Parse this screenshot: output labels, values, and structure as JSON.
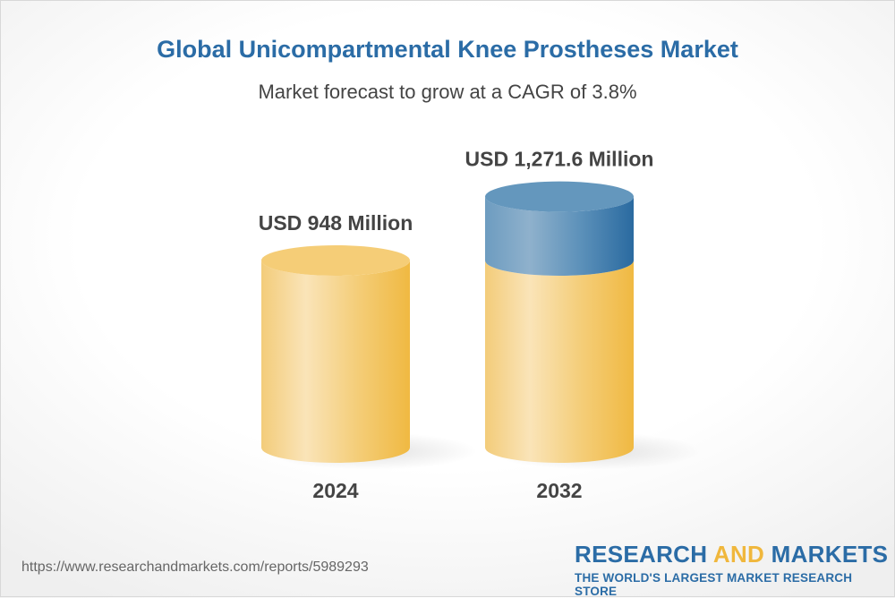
{
  "chart_data": {
    "type": "bar",
    "style": "3d-cylinder",
    "title": "Global Unicompartmental Knee Prostheses Market",
    "subtitle": "Market forecast to grow at a CAGR of 3.8%",
    "categories": [
      "2024",
      "2032"
    ],
    "values": [
      948,
      1271.6
    ],
    "data_labels": [
      "USD 948 Million",
      "USD 1,271.6 Million"
    ],
    "unit": "USD Million",
    "grid": false,
    "colors": {
      "base": "#f0b942",
      "base_highlight": "#fae4b8",
      "growth": "#2b6ca6",
      "growth_highlight": "#8fb1cc",
      "title": "#2b6ca6",
      "label": "#444444"
    }
  },
  "footer": {
    "url": "https://www.researchandmarkets.com/reports/5989293",
    "logo_part1": "RESEARCH ",
    "logo_part2": "AND",
    "logo_part3": " MARKETS",
    "tagline": "THE WORLD'S LARGEST MARKET RESEARCH STORE"
  }
}
